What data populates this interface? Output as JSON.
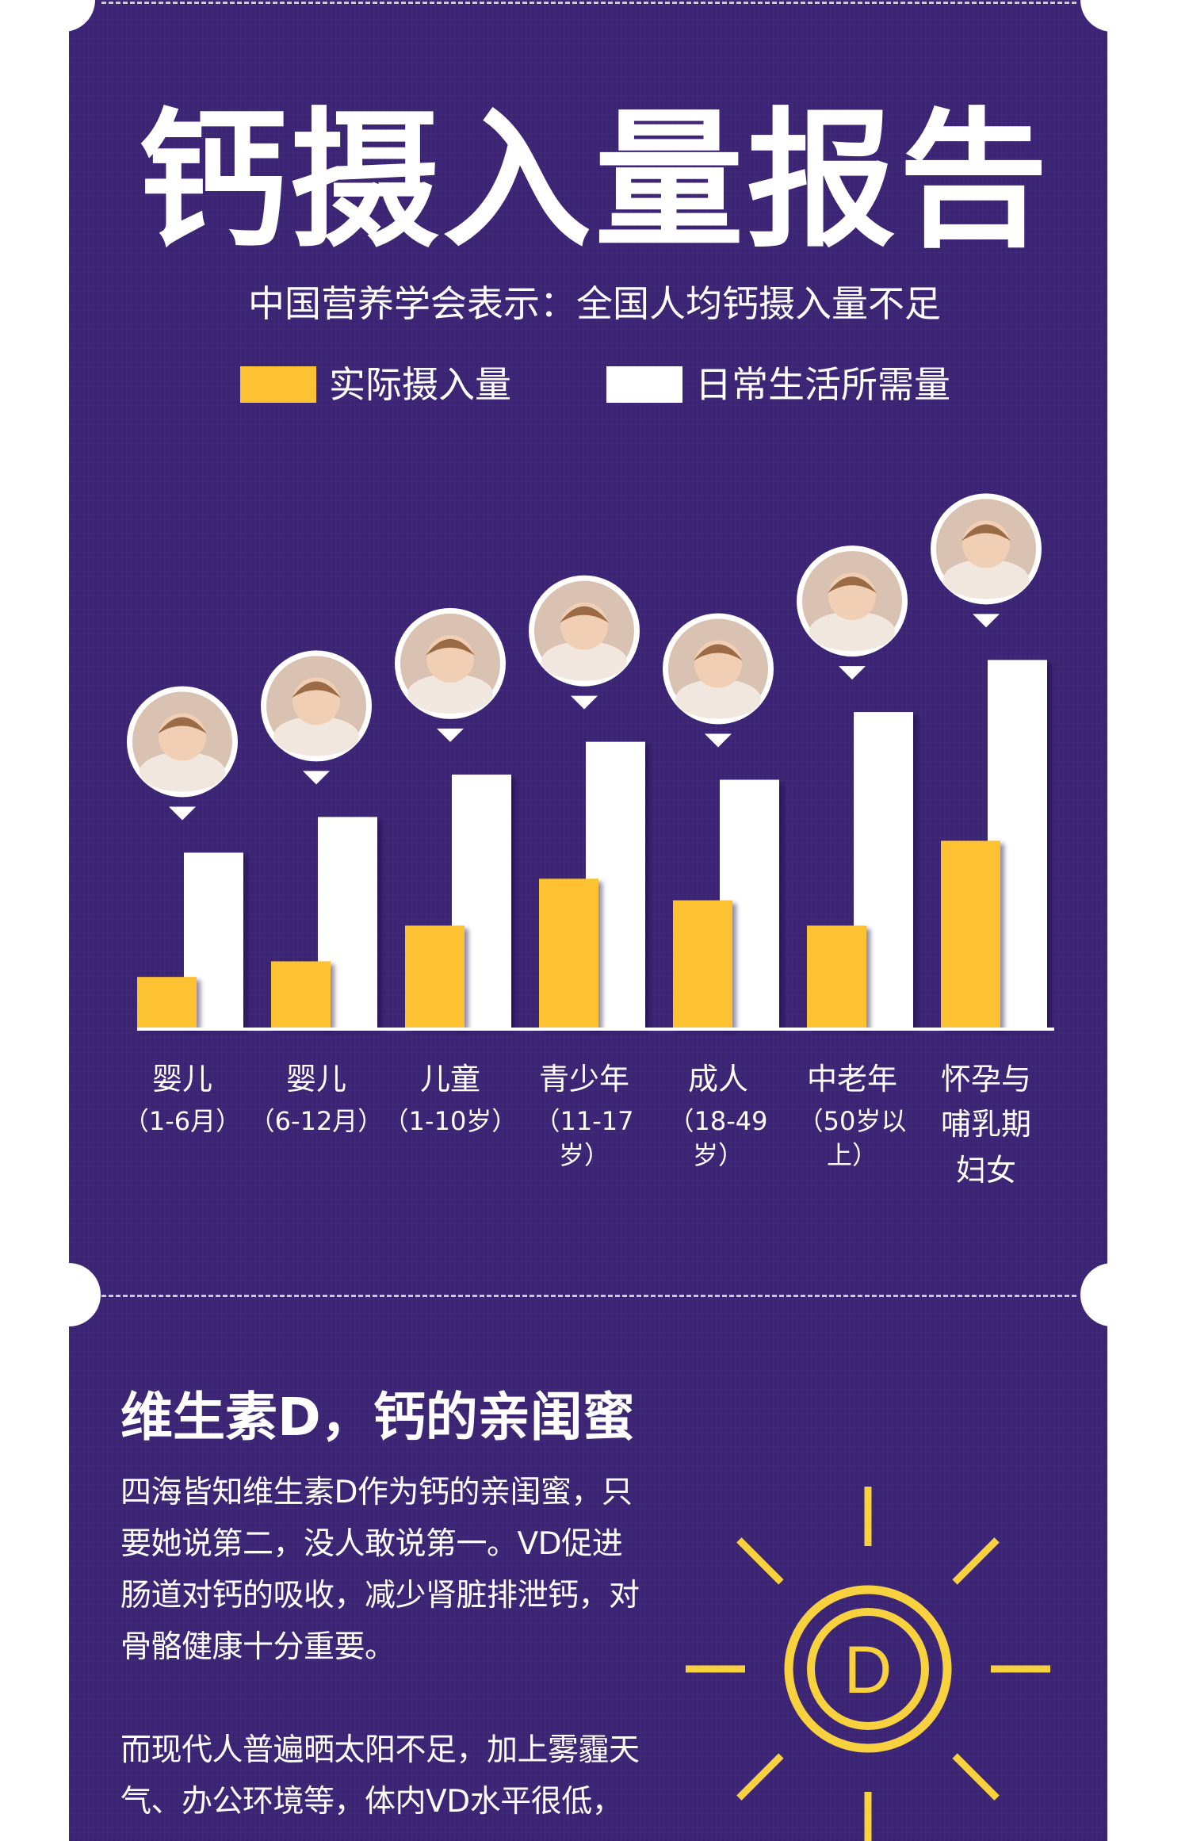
{
  "header": {
    "title": "钙摄入量报告",
    "subtitle": "中国营养学会表示：全国人均钙摄入量不足"
  },
  "legend": {
    "actual": {
      "label": "实际摄入量",
      "color": "#fcc233"
    },
    "required": {
      "label": "日常生活所需量",
      "color": "#ffffff"
    }
  },
  "chart_data": {
    "type": "bar",
    "title": "钙摄入量报告",
    "categories": [
      {
        "name": "婴儿",
        "sub": "（1-6月）",
        "icon": "sleeping-baby-photo"
      },
      {
        "name": "婴儿",
        "sub": "（6-12月）",
        "icon": "smiling-baby-photo"
      },
      {
        "name": "儿童",
        "sub": "（1-10岁）",
        "icon": "blond-child-photo"
      },
      {
        "name": "青少年",
        "sub": "（11-17岁）",
        "icon": "teen-with-glasses-photo"
      },
      {
        "name": "成人",
        "sub": "（18-49岁）",
        "icon": "young-woman-photo"
      },
      {
        "name": "中老年",
        "sub": "（50岁以上）",
        "icon": "elderly-couple-photo"
      },
      {
        "name": "怀孕与",
        "sub": "哺乳期",
        "sub2": "妇女",
        "icon": "pregnant-woman-photo"
      }
    ],
    "series": [
      {
        "name": "实际摄入量",
        "color": "#fcc233",
        "values": [
          68,
          89,
          137,
          200,
          171,
          137,
          251
        ]
      },
      {
        "name": "日常生活所需量",
        "color": "#ffffff",
        "values": [
          235,
          283,
          340,
          384,
          333,
          424,
          494
        ]
      }
    ],
    "ylim": [
      0,
      520
    ],
    "grid": false,
    "legend_position": "top"
  },
  "section": {
    "title": "维生素D，钙的亲闺蜜",
    "paragraph1": "四海皆知维生素D作为钙的亲闺蜜，只要她说第二，没人敢说第一。VD促进肠道对钙的吸收，减少肾脏排泄钙，对骨骼健康十分重要。",
    "paragraph2": "而现代人普遍晒太阳不足，加上雾霾天气、办公环境等，体内VD水平很低，",
    "sun_letter": "D",
    "sun_color": "#f7d23e"
  }
}
